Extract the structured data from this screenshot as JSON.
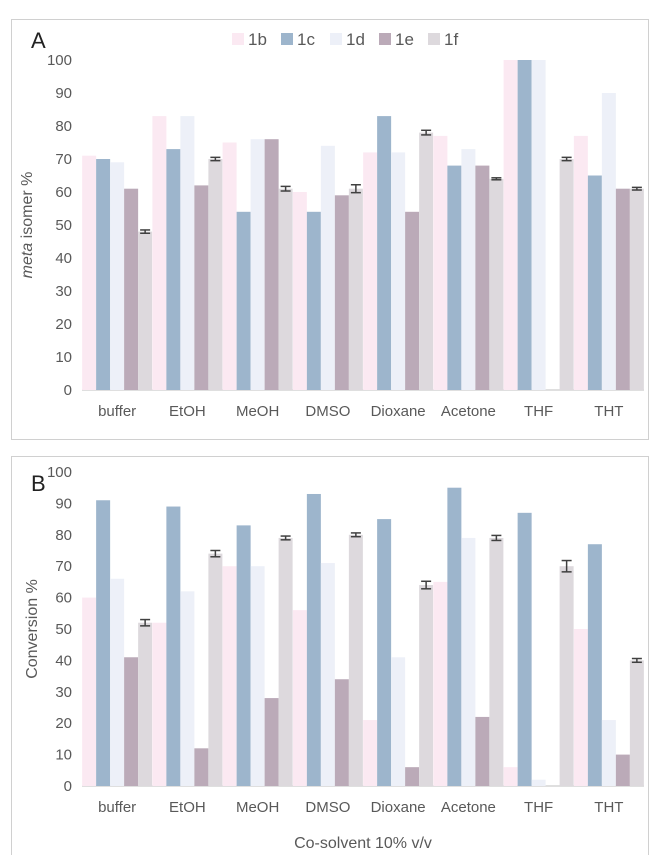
{
  "colors": {
    "1b": "#fbe9f2",
    "1c": "#9db5cc",
    "1d": "#edf0f8",
    "1e": "#bbaab8",
    "1f": "#ddd9dd",
    "error_bar": "#404040",
    "grid": "#d9d9d9",
    "axis": "#bfbfbf",
    "text": "#595959"
  },
  "chart_data": [
    {
      "panel": "A",
      "type": "bar",
      "categories": [
        "buffer",
        "EtOH",
        "MeOH",
        "DMSO",
        "Dioxane",
        "Acetone",
        "THF",
        "THT"
      ],
      "series": [
        {
          "name": "1b",
          "values": [
            71,
            83,
            75,
            60,
            72,
            77,
            100,
            77
          ]
        },
        {
          "name": "1c",
          "values": [
            70,
            73,
            54,
            54,
            83,
            68,
            100,
            65
          ]
        },
        {
          "name": "1d",
          "values": [
            69,
            83,
            76,
            74,
            72,
            73,
            100,
            90
          ]
        },
        {
          "name": "1e",
          "values": [
            61,
            62,
            76,
            59,
            54,
            68,
            0,
            61
          ]
        },
        {
          "name": "1f",
          "values": [
            48,
            70,
            61,
            61,
            78,
            64,
            70,
            61
          ]
        }
      ],
      "error_bars": {
        "series": "1f",
        "values": [
          0.5,
          0.5,
          0.7,
          1.2,
          0.7,
          0.3,
          0.5,
          0.4
        ]
      },
      "ylabel_italic": "meta",
      "ylabel_rest": " isomer %",
      "xlabel": "",
      "ylim": [
        0,
        100
      ],
      "yticks": [
        0,
        10,
        20,
        30,
        40,
        50,
        60,
        70,
        80,
        90,
        100
      ],
      "legend_position": "top-center",
      "grid": false
    },
    {
      "panel": "B",
      "type": "bar",
      "categories": [
        "buffer",
        "EtOH",
        "MeOH",
        "DMSO",
        "Dioxane",
        "Acetone",
        "THF",
        "THT"
      ],
      "series": [
        {
          "name": "1b",
          "values": [
            60,
            52,
            70,
            56,
            21,
            65,
            6,
            50
          ]
        },
        {
          "name": "1c",
          "values": [
            91,
            89,
            83,
            93,
            85,
            95,
            87,
            77
          ]
        },
        {
          "name": "1d",
          "values": [
            66,
            62,
            70,
            71,
            41,
            79,
            2,
            21
          ]
        },
        {
          "name": "1e",
          "values": [
            41,
            12,
            28,
            34,
            6,
            22,
            0,
            10
          ]
        },
        {
          "name": "1f",
          "values": [
            52,
            74,
            79,
            80,
            64,
            79,
            70,
            40
          ]
        }
      ],
      "error_bars": {
        "series": "1f",
        "values": [
          1.0,
          1.0,
          0.6,
          0.6,
          1.2,
          0.8,
          1.8,
          0.6
        ]
      },
      "ylabel": "Conversion %",
      "xlabel": "Co-solvent 10% v/v",
      "ylim": [
        0,
        100
      ],
      "yticks": [
        0,
        10,
        20,
        30,
        40,
        50,
        60,
        70,
        80,
        90,
        100
      ],
      "grid": false
    }
  ],
  "panels": {
    "A": {
      "letter": "A"
    },
    "B": {
      "letter": "B"
    }
  }
}
